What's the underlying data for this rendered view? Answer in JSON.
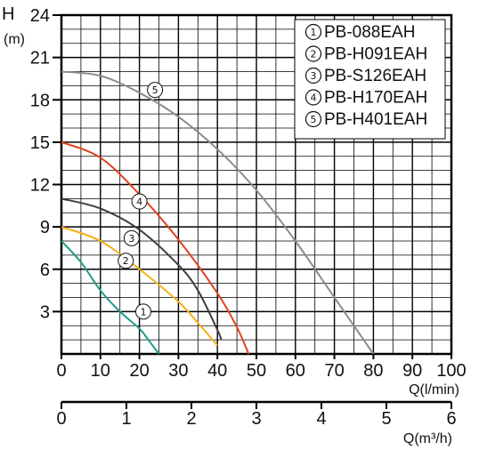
{
  "chart_data": {
    "type": "line",
    "title": "",
    "ylabel_top": "H",
    "ylabel_unit": "(m)",
    "xlabel": "Q(l/min)",
    "xlabel2": "Q(m³/h)",
    "xlim": [
      0,
      100
    ],
    "ylim": [
      0,
      24
    ],
    "grid": true,
    "legend_position": "top-right",
    "x_ticks": [
      "0",
      "10",
      "20",
      "30",
      "40",
      "50",
      "60",
      "70",
      "80",
      "90",
      "100"
    ],
    "y_ticks": [
      "3",
      "6",
      "9",
      "12",
      "15",
      "18",
      "21",
      "24"
    ],
    "x2_ticks": [
      "0",
      "1",
      "2",
      "3",
      "4",
      "5",
      "6"
    ],
    "series": [
      {
        "marker": "①",
        "name": "PB-088EAH",
        "color": "#1a9e86",
        "x": [
          0,
          5,
          10,
          15,
          20,
          22,
          25
        ],
        "y": [
          8.0,
          6.5,
          4.5,
          3.0,
          1.8,
          1.1,
          0
        ]
      },
      {
        "marker": "②",
        "name": "PB-H091EAH",
        "color": "#f2b215",
        "x": [
          0,
          10,
          20,
          30,
          35,
          40
        ],
        "y": [
          9.0,
          8.0,
          6.0,
          3.7,
          2.2,
          0.6
        ]
      },
      {
        "marker": "③",
        "name": "PB-S126EAH",
        "color": "#3e3e3e",
        "x": [
          0,
          10,
          20,
          30,
          35,
          40,
          41
        ],
        "y": [
          11.0,
          10.3,
          8.8,
          6.3,
          4.5,
          1.7,
          1.0
        ]
      },
      {
        "marker": "④",
        "name": "PB-H170EAH",
        "color": "#e2431f",
        "x": [
          0,
          10,
          20,
          30,
          40,
          45,
          48
        ],
        "y": [
          15.0,
          13.9,
          11.3,
          8.1,
          4.3,
          1.9,
          0
        ]
      },
      {
        "marker": "⑤",
        "name": "PB-H401EAH",
        "color": "#8c8c8c",
        "x": [
          0,
          10,
          20,
          30,
          40,
          50,
          60,
          70,
          80
        ],
        "y": [
          20.0,
          19.7,
          18.5,
          16.8,
          14.5,
          11.6,
          8.0,
          4.0,
          0
        ]
      }
    ]
  }
}
